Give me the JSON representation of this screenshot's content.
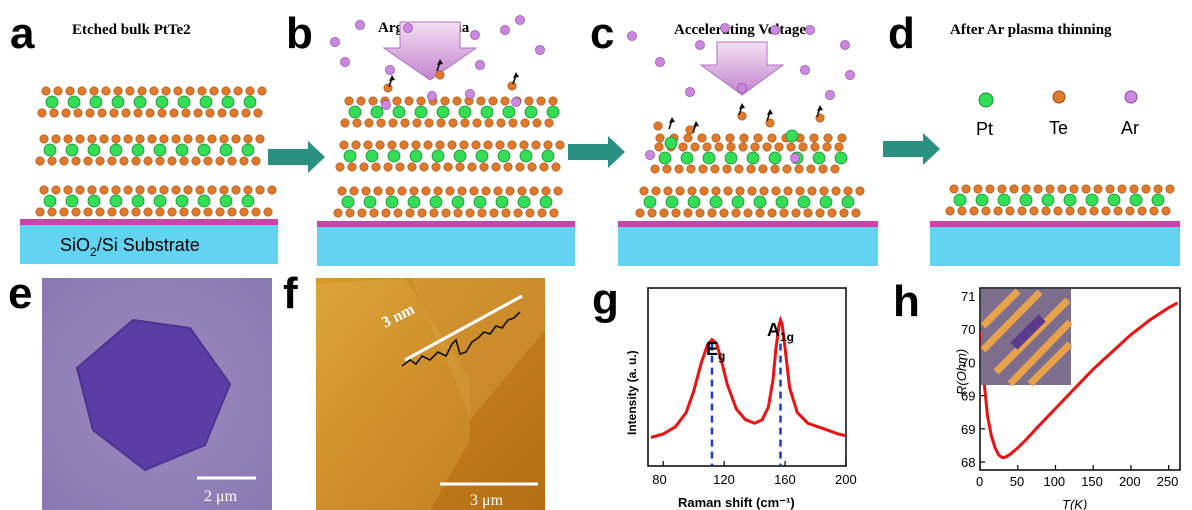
{
  "panels": {
    "a": {
      "label": "a",
      "title": "Etched bulk PtTe2",
      "substrate": "SiO2/Si Substrate",
      "substrate_main": "SiO",
      "substrate_sub": "2",
      "substrate_rest": "/Si Substrate"
    },
    "b": {
      "label": "b",
      "title": "Argon Plasma"
    },
    "c": {
      "label": "c",
      "title": "Accelerating Voltage"
    },
    "d": {
      "label": "d",
      "title": "After Ar plasma thinning"
    },
    "e": {
      "label": "e",
      "scalebar": "2 μm"
    },
    "f": {
      "label": "f",
      "height_label": "3 nm",
      "scalebar": "3 μm"
    },
    "g": {
      "label": "g"
    },
    "h": {
      "label": "h"
    }
  },
  "legend": {
    "pt": "Pt",
    "te": "Te",
    "ar": "Ar"
  },
  "colors": {
    "pt": "#33dd55",
    "te": "#e07a2a",
    "ar": "#cc88e0",
    "substrate": "#62d4f2",
    "substrate_top": "#cc44aa",
    "arrow": "#2a9080",
    "plasma": "#d89ad8",
    "raman": "#ee1111",
    "resistance": "#ee1111",
    "dash": "#1a3fd0"
  },
  "chart_data": [
    {
      "type": "line",
      "panel": "g",
      "xlabel": "Raman shift (cm⁻¹)",
      "ylabel": "Intensity (a. u.)",
      "xticks": [
        80,
        120,
        160,
        200
      ],
      "xlim": [
        70,
        200
      ],
      "peaks": [
        {
          "label": "E_g",
          "label_main": "E",
          "label_sub": "g",
          "x": 112
        },
        {
          "label": "A_1g",
          "label_main": "A",
          "label_sub": "1g",
          "x": 157
        }
      ],
      "series": [
        {
          "values": [
            [
              72,
              0.16
            ],
            [
              80,
              0.18
            ],
            [
              88,
              0.22
            ],
            [
              95,
              0.3
            ],
            [
              100,
              0.42
            ],
            [
              105,
              0.58
            ],
            [
              109,
              0.68
            ],
            [
              112,
              0.71
            ],
            [
              115,
              0.69
            ],
            [
              118,
              0.6
            ],
            [
              122,
              0.46
            ],
            [
              128,
              0.32
            ],
            [
              134,
              0.26
            ],
            [
              140,
              0.24
            ],
            [
              145,
              0.26
            ],
            [
              149,
              0.33
            ],
            [
              152,
              0.48
            ],
            [
              154,
              0.66
            ],
            [
              156,
              0.79
            ],
            [
              157,
              0.82
            ],
            [
              158,
              0.8
            ],
            [
              160,
              0.66
            ],
            [
              163,
              0.44
            ],
            [
              168,
              0.3
            ],
            [
              175,
              0.24
            ],
            [
              185,
              0.21
            ],
            [
              195,
              0.18
            ],
            [
              200,
              0.17
            ]
          ]
        }
      ]
    },
    {
      "type": "line",
      "panel": "h",
      "xlabel": "T(K)",
      "ylabel": "R(Ohm)",
      "xticks": [
        0,
        50,
        100,
        150,
        200,
        250
      ],
      "yticks": [
        "68",
        "69",
        "69",
        "70",
        "70",
        "71"
      ],
      "xlim": [
        0,
        265
      ],
      "ylim": [
        67.6,
        71.3
      ],
      "series": [
        {
          "values": [
            [
              2,
              70.4
            ],
            [
              6,
              69.3
            ],
            [
              10,
              68.7
            ],
            [
              15,
              68.3
            ],
            [
              20,
              68.05
            ],
            [
              25,
              67.9
            ],
            [
              30,
              67.85
            ],
            [
              35,
              67.87
            ],
            [
              40,
              67.92
            ],
            [
              50,
              68.05
            ],
            [
              60,
              68.2
            ],
            [
              75,
              68.45
            ],
            [
              100,
              68.85
            ],
            [
              125,
              69.25
            ],
            [
              150,
              69.65
            ],
            [
              175,
              70.0
            ],
            [
              200,
              70.35
            ],
            [
              225,
              70.65
            ],
            [
              250,
              70.9
            ],
            [
              262,
              71.0
            ]
          ]
        }
      ]
    }
  ]
}
